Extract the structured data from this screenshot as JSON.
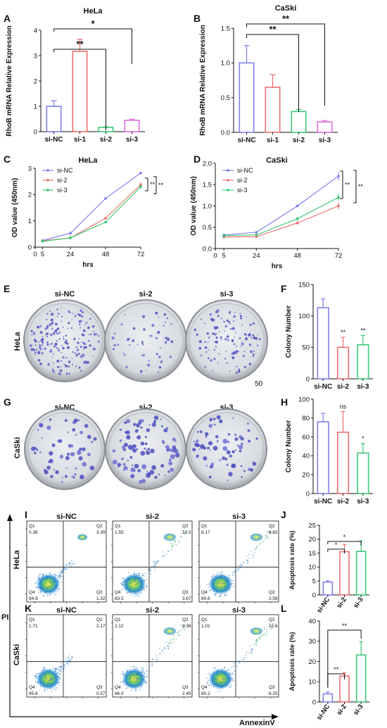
{
  "figure": {
    "panels": {
      "A": "A",
      "B": "B",
      "C": "C",
      "D": "D",
      "E": "E",
      "F": "F",
      "G": "G",
      "H": "H",
      "I": "I",
      "J": "J",
      "K": "K",
      "L": "L"
    },
    "bar_groups": [
      "si-NC",
      "si-1",
      "si-2",
      "si-3"
    ],
    "plate_labels": [
      "si-NC",
      "si-2",
      "si-3"
    ],
    "row_labels": {
      "hela": "HeLa",
      "caski": "CaSki"
    },
    "stray_text": "50",
    "flow": {
      "y_axis_label": "PI",
      "x_axis_label": "AnnexinV",
      "quadrant_names": [
        "Q1",
        "Q2",
        "Q3",
        "Q4"
      ],
      "hela": [
        {
          "title": "si-NC",
          "q1": "0.36",
          "q2": "3.39",
          "q3": "1.32",
          "q4": "94.9"
        },
        {
          "title": "si-2",
          "q1": "1.55",
          "q2": "11.3",
          "q3": "3.67",
          "q4": "83.5"
        },
        {
          "title": "si-3",
          "q1": "8.17",
          "q2": "8.82",
          "q3": "2.58",
          "q4": "80.6"
        }
      ],
      "caski": [
        {
          "title": "si-NC",
          "q1": "1.71",
          "q2": "2.17",
          "q3": "0.57",
          "q4": "95.6"
        },
        {
          "title": "si-2",
          "q1": "2.12",
          "q2": "9.38",
          "q3": "2.45",
          "q4": "86.0"
        },
        {
          "title": "si-3",
          "q1": "1.01",
          "q2": "12.6",
          "q3": "6.25",
          "q4": "80.2"
        }
      ]
    }
  },
  "chart_data": [
    {
      "panel": "A",
      "type": "bar",
      "title": "HeLa",
      "ylabel": "RhoB mRNA Relative Expression",
      "categories": [
        "si-NC",
        "si-1",
        "si-2",
        "si-3"
      ],
      "values": [
        1.0,
        3.17,
        0.17,
        0.45
      ],
      "errors": [
        0.22,
        0.48,
        0.02,
        0.04
      ],
      "colors": [
        "#8080ee",
        "#ee6e6e",
        "#3cc878",
        "#e06ee0"
      ],
      "ylim": [
        0,
        4
      ],
      "yticks": [
        0,
        1,
        2,
        3,
        4
      ],
      "significance": [
        {
          "from": "si-NC",
          "to": "si-2",
          "label": "**"
        },
        {
          "from": "si-NC",
          "to": "si-3",
          "label": "*"
        }
      ]
    },
    {
      "panel": "B",
      "type": "bar",
      "title": "CaSki",
      "ylabel": "RhoB mRNA Relative Expression",
      "categories": [
        "si-NC",
        "si-1",
        "si-2",
        "si-3"
      ],
      "values": [
        1.0,
        0.65,
        0.3,
        0.15
      ],
      "errors": [
        0.25,
        0.18,
        0.03,
        0.02
      ],
      "colors": [
        "#8080ee",
        "#ee6e6e",
        "#3cc878",
        "#e06ee0"
      ],
      "ylim": [
        0,
        1.5
      ],
      "yticks": [
        0.0,
        0.5,
        1.0,
        1.5
      ],
      "significance": [
        {
          "from": "si-NC",
          "to": "si-2",
          "label": "**"
        },
        {
          "from": "si-NC",
          "to": "si-3",
          "label": "**"
        }
      ]
    },
    {
      "panel": "C",
      "type": "line",
      "title": "HeLa",
      "xlabel": "hrs",
      "ylabel": "OD value (450nm)",
      "x": [
        5,
        24,
        48,
        72
      ],
      "xticks": [
        0,
        5,
        24,
        48,
        72
      ],
      "xlim": [
        0,
        72
      ],
      "ylim": [
        0,
        3
      ],
      "yticks": [
        0,
        1,
        2,
        3
      ],
      "series": [
        {
          "name": "si-NC",
          "color": "#7b7bea",
          "values": [
            0.25,
            0.53,
            1.85,
            2.82
          ],
          "errors": [
            0.02,
            0.02,
            0.03,
            0.04
          ]
        },
        {
          "name": "si-2",
          "color": "#ec6c6c",
          "values": [
            0.24,
            0.35,
            1.1,
            2.38
          ],
          "errors": [
            0.02,
            0.02,
            0.04,
            0.08
          ]
        },
        {
          "name": "si-3",
          "color": "#35c66e",
          "values": [
            0.22,
            0.35,
            0.95,
            2.3
          ],
          "errors": [
            0.02,
            0.02,
            0.04,
            0.08
          ]
        }
      ],
      "significance": [
        "**",
        "**"
      ]
    },
    {
      "panel": "D",
      "type": "line",
      "title": "CaSki",
      "xlabel": "hrs",
      "ylabel": "OD value (450nm)",
      "x": [
        5,
        24,
        48,
        72
      ],
      "xticks": [
        0,
        5,
        24,
        48,
        72
      ],
      "xlim": [
        0,
        72
      ],
      "ylim": [
        0,
        2.0
      ],
      "yticks": [
        0.0,
        0.5,
        1.0,
        1.5,
        2.0
      ],
      "series": [
        {
          "name": "si-NC",
          "color": "#7b7bea",
          "values": [
            0.32,
            0.38,
            1.0,
            1.7
          ],
          "errors": [
            0.02,
            0.02,
            0.03,
            0.1
          ]
        },
        {
          "name": "si-2",
          "color": "#ec6c6c",
          "values": [
            0.27,
            0.28,
            0.6,
            1.0
          ],
          "errors": [
            0.02,
            0.02,
            0.04,
            0.08
          ]
        },
        {
          "name": "si-3",
          "color": "#35c66e",
          "values": [
            0.3,
            0.32,
            0.7,
            1.2
          ],
          "errors": [
            0.02,
            0.02,
            0.04,
            0.08
          ]
        }
      ],
      "significance": [
        "**",
        "**"
      ]
    },
    {
      "panel": "F",
      "type": "bar",
      "ylabel": "Colony Number",
      "categories": [
        "si-NC",
        "si-2",
        "si-3"
      ],
      "values": [
        113,
        50,
        54
      ],
      "errors": [
        14,
        16,
        15
      ],
      "colors": [
        "#8080ee",
        "#ee6e6e",
        "#3cc878"
      ],
      "ylim": [
        0,
        150
      ],
      "yticks": [
        0,
        50,
        100,
        150
      ],
      "significance_labels": [
        "",
        "**",
        "**"
      ]
    },
    {
      "panel": "H",
      "type": "bar",
      "ylabel": "Colony Number",
      "categories": [
        "si-NC",
        "si-2",
        "si-3"
      ],
      "values": [
        76,
        65,
        43
      ],
      "errors": [
        9,
        22,
        10
      ],
      "colors": [
        "#8080ee",
        "#ee6e6e",
        "#3cc878"
      ],
      "ylim": [
        0,
        100
      ],
      "yticks": [
        0,
        20,
        40,
        60,
        80,
        100
      ],
      "significance_labels": [
        "",
        "ns",
        "*"
      ]
    },
    {
      "panel": "J",
      "type": "bar",
      "ylabel": "Apoptosis rate (%)",
      "categories": [
        "si-NC",
        "si-2",
        "si-3"
      ],
      "values": [
        4.6,
        15.5,
        15.6
      ],
      "errors": [
        0.5,
        2.6,
        3.8
      ],
      "colors": [
        "#8080ee",
        "#ee6e6e",
        "#3cc878"
      ],
      "ylim": [
        0,
        25
      ],
      "yticks": [
        0,
        5,
        10,
        15,
        20,
        25
      ],
      "significance": [
        {
          "from": "si-NC",
          "to": "si-2",
          "label": "*"
        },
        {
          "from": "si-NC",
          "to": "si-3",
          "label": "*"
        }
      ]
    },
    {
      "panel": "L",
      "type": "bar",
      "ylabel": "Apoptosis rate (%)",
      "categories": [
        "si-NC",
        "si-2",
        "si-3"
      ],
      "values": [
        4.0,
        12.8,
        23.2
      ],
      "errors": [
        1.0,
        1.6,
        6.5
      ],
      "colors": [
        "#8080ee",
        "#ee6e6e",
        "#3cc878"
      ],
      "ylim": [
        0,
        40
      ],
      "yticks": [
        0,
        10,
        20,
        30,
        40
      ],
      "significance": [
        {
          "from": "si-NC",
          "to": "si-2",
          "label": "**"
        },
        {
          "from": "si-NC",
          "to": "si-3",
          "label": "**"
        }
      ]
    }
  ]
}
